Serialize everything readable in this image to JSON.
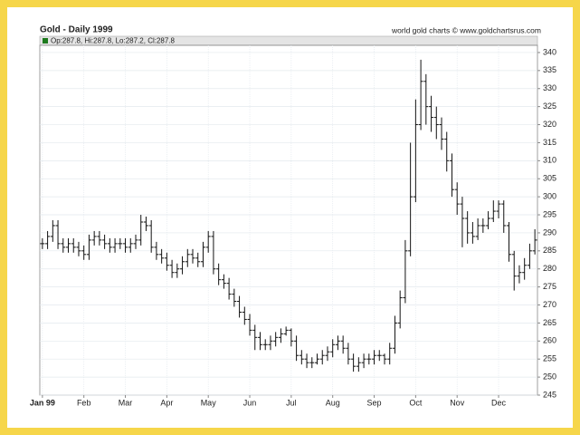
{
  "chart_data": {
    "type": "ohlc",
    "title": "Gold - Daily 1999",
    "source": "world gold charts © www.goldchartsrus.com",
    "legend_text": "Op:287.8, Hi:287.8, Lo:287.2, Cl:287.8",
    "color": "#111111",
    "grid": true,
    "categories": [
      "Jan 99",
      null,
      null,
      null,
      null,
      null,
      null,
      null,
      "Feb",
      null,
      null,
      null,
      null,
      null,
      null,
      null,
      "Mar",
      null,
      null,
      null,
      null,
      null,
      null,
      null,
      "Apr",
      null,
      null,
      null,
      null,
      null,
      null,
      null,
      "May",
      null,
      null,
      null,
      null,
      null,
      null,
      null,
      "Jun",
      null,
      null,
      null,
      null,
      null,
      null,
      null,
      "Jul",
      null,
      null,
      null,
      null,
      null,
      null,
      null,
      "Aug",
      null,
      null,
      null,
      null,
      null,
      null,
      null,
      "Sep",
      null,
      null,
      null,
      null,
      null,
      null,
      null,
      "Oct",
      null,
      null,
      null,
      null,
      null,
      null,
      null,
      "Nov",
      null,
      null,
      null,
      null,
      null,
      null,
      null,
      "Dec",
      null,
      null,
      null,
      null,
      null,
      null,
      null
    ],
    "open": [
      287,
      287,
      289,
      292,
      287,
      286,
      287,
      286,
      285,
      284,
      288,
      289,
      288,
      287,
      286,
      287,
      287,
      286,
      287,
      288,
      293,
      292,
      286,
      284,
      283,
      281,
      279,
      280,
      282,
      284,
      283,
      282,
      286,
      289,
      280,
      277,
      276,
      273,
      271,
      268,
      266,
      263,
      261,
      259,
      259,
      260,
      261,
      262,
      263,
      260,
      256,
      255,
      254,
      254,
      255,
      256,
      257,
      259,
      260,
      258,
      255,
      253,
      254,
      255,
      255,
      256,
      256,
      255,
      258,
      265,
      272,
      285,
      300,
      320,
      332,
      325,
      322,
      320,
      316,
      310,
      302,
      298,
      294,
      290,
      289,
      292,
      292,
      294,
      296,
      298,
      292,
      284,
      278,
      279,
      281,
      285
    ],
    "high": [
      288.5,
      290.5,
      293.5,
      293.5,
      288.5,
      288.5,
      288.5,
      287.5,
      286.5,
      289.5,
      290.5,
      290.5,
      289.5,
      288.5,
      288.5,
      288.5,
      288.5,
      288.5,
      289.5,
      295,
      294.5,
      293.5,
      287.5,
      285.5,
      284.5,
      282.5,
      281.5,
      283.5,
      285.5,
      285.5,
      284.5,
      287.5,
      290.5,
      290.5,
      281.5,
      278.5,
      277.5,
      274.5,
      272.5,
      269.5,
      267.5,
      264.5,
      262.5,
      260.5,
      261.5,
      262.5,
      263.5,
      264,
      263.5,
      261.5,
      257.5,
      256.5,
      255.5,
      256.5,
      257.5,
      258.5,
      260.5,
      261.5,
      261.5,
      259.5,
      256.5,
      255.5,
      256.5,
      256.5,
      257.5,
      257.5,
      256.5,
      259.5,
      267,
      274,
      288,
      315,
      327,
      338,
      334,
      328,
      325,
      322,
      318,
      312,
      304,
      300,
      296,
      293,
      294,
      294,
      296,
      299,
      299,
      299,
      293,
      285,
      281,
      283,
      287,
      291
    ],
    "low": [
      285.5,
      285.5,
      287.5,
      285.5,
      284.5,
      284.5,
      284.5,
      283.5,
      282.5,
      282.5,
      286.5,
      286.5,
      285.5,
      284.5,
      284.5,
      285.5,
      284.5,
      284.5,
      285.5,
      286.5,
      290.5,
      284.5,
      282.5,
      281.5,
      279.5,
      277.5,
      277.5,
      278.5,
      280.5,
      281.5,
      280.5,
      280.5,
      284.5,
      278.5,
      275.5,
      274.5,
      271.5,
      269.5,
      266.5,
      264.5,
      261.5,
      257.5,
      257.5,
      257.5,
      257.5,
      258.5,
      259.5,
      261.5,
      258.5,
      254.5,
      253.5,
      252.5,
      252.5,
      253.5,
      253.5,
      254.5,
      255.5,
      257.5,
      256.5,
      253.5,
      251.5,
      251.5,
      252.5,
      253.5,
      253.5,
      254.5,
      253.5,
      253.5,
      256.5,
      263.5,
      270.5,
      283.5,
      298.5,
      318.5,
      320,
      318,
      316,
      313,
      307,
      300,
      295,
      286,
      287,
      287,
      288,
      290,
      291,
      293,
      294,
      290,
      282,
      274,
      276,
      277,
      280,
      284
    ],
    "close": [
      287,
      289,
      292,
      287,
      286,
      287,
      286,
      285,
      284,
      288,
      289,
      288,
      287,
      286,
      287,
      287,
      286,
      287,
      288,
      293,
      292,
      286,
      284,
      283,
      281,
      279,
      280,
      282,
      284,
      283,
      282,
      286,
      289,
      280,
      277,
      276,
      273,
      271,
      268,
      266,
      263,
      261,
      259,
      259,
      260,
      261,
      262,
      263,
      260,
      256,
      255,
      254,
      254,
      255,
      256,
      257,
      259,
      260,
      258,
      255,
      253,
      254,
      255,
      255,
      256,
      256,
      255,
      258,
      265,
      272,
      285,
      300,
      320,
      332,
      325,
      322,
      320,
      316,
      310,
      302,
      298,
      294,
      290,
      289,
      292,
      292,
      294,
      296,
      298,
      292,
      284,
      278,
      279,
      281,
      285,
      288
    ],
    "ylim": [
      245,
      342
    ],
    "yticks": [
      245,
      250,
      255,
      260,
      265,
      270,
      275,
      280,
      285,
      290,
      295,
      300,
      305,
      310,
      315,
      320,
      325,
      330,
      335,
      340
    ]
  }
}
